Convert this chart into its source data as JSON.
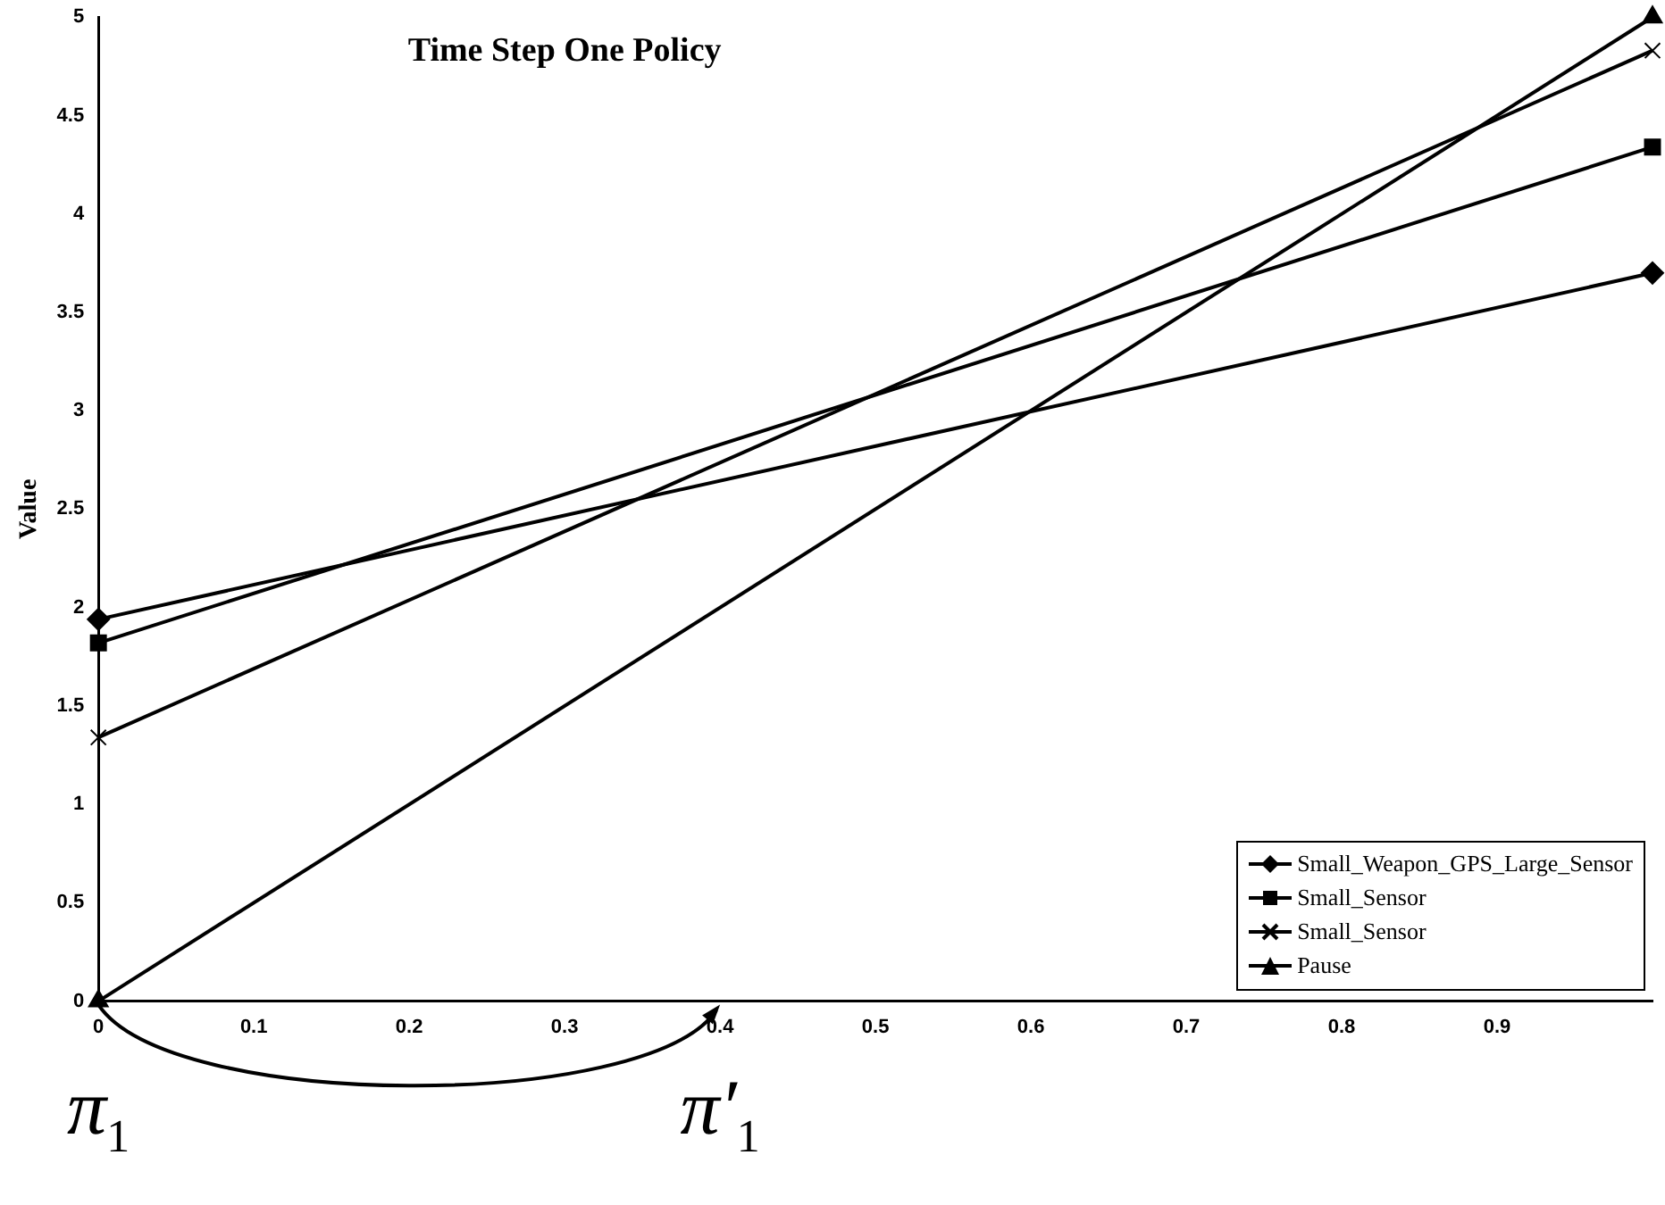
{
  "chart_data": {
    "type": "line",
    "title": "Time Step One Policy",
    "ylabel": "Value",
    "x": [
      0,
      1
    ],
    "series": [
      {
        "name": "Small_Weapon_GPS_Large_Sensor",
        "color": "#000000",
        "marker": "diamond",
        "values": [
          1.94,
          3.7
        ]
      },
      {
        "name": "Small_Sensor",
        "color": "#000000",
        "marker": "square",
        "values": [
          1.82,
          4.34
        ]
      },
      {
        "name": "Small_Sensor",
        "color": "#000000",
        "marker": "cross",
        "values": [
          1.34,
          4.83
        ]
      },
      {
        "name": "Pause",
        "color": "#000000",
        "marker": "triangle",
        "values": [
          0,
          5
        ]
      }
    ],
    "xlim": [
      0,
      1
    ],
    "xticks": [
      0,
      0.1,
      0.2,
      0.3,
      0.4,
      0.5,
      0.6,
      0.7,
      0.8,
      0.9
    ],
    "ylim": [
      0,
      5
    ],
    "yticks": [
      0,
      0.5,
      1,
      1.5,
      2,
      2.5,
      3,
      3.5,
      4,
      4.5,
      5
    ],
    "grid": false,
    "legend": "bottom right",
    "line_style": "solid",
    "annotations": [
      "π$_{1}$",
      "π′$_{1}$"
    ]
  }
}
